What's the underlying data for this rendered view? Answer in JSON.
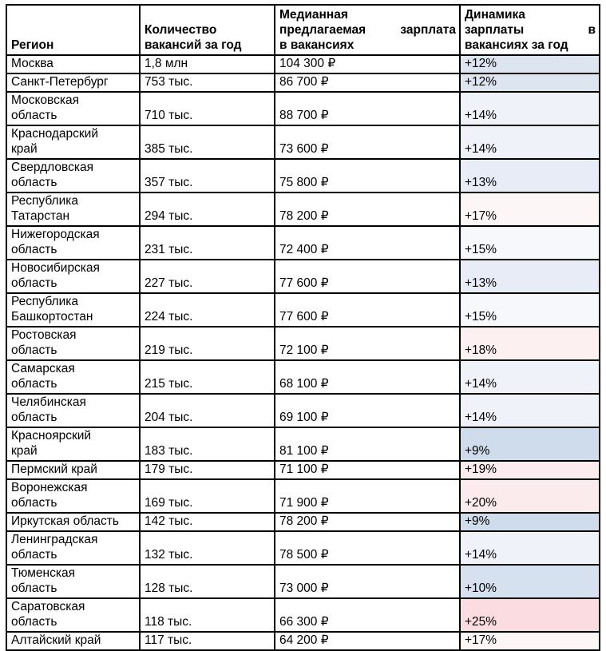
{
  "table": {
    "border_color": "#000000",
    "columns": [
      {
        "id": "region",
        "lines": [
          {
            "text": "Регион",
            "justify": false
          }
        ]
      },
      {
        "id": "vacancies",
        "lines": [
          {
            "text": "Количество",
            "justify": false
          },
          {
            "text": "вакансий за год",
            "justify": false
          }
        ]
      },
      {
        "id": "salary",
        "lines": [
          {
            "text": "Медианная",
            "justify": false
          },
          {
            "text": "предлагаемая зарплата",
            "justify": true
          },
          {
            "text": "в вакансиях",
            "justify": false
          }
        ]
      },
      {
        "id": "dynamics",
        "lines": [
          {
            "text": "Динамика",
            "justify": false
          },
          {
            "text": "зарплаты в",
            "justify": true
          },
          {
            "text": "вакансиях за год",
            "justify": false
          }
        ]
      }
    ],
    "heat_colors": {
      "+9%": "#cfdcec",
      "+10%": "#d6e1f0",
      "+12%": "#dde5f1",
      "+13%": "#e7ecf6",
      "+14%": "#eff2f9",
      "+15%": "#f7f8fc",
      "+17%": "#fcf6f7",
      "+18%": "#fdf0f1",
      "+19%": "#fceced",
      "+20%": "#fcebed",
      "+25%": "#fbdce0"
    },
    "rows": [
      {
        "region": "Москва",
        "vacancies": "1,8 млн",
        "salary": "104 300 ₽",
        "dynamics": "+12%",
        "dynamics_bg": "#dde5f1"
      },
      {
        "region": "Санкт-Петербург",
        "vacancies": "753 тыс.",
        "salary": "86 700 ₽",
        "dynamics": "+12%",
        "dynamics_bg": "#dde5f1"
      },
      {
        "region": "Московская\nобласть",
        "vacancies": "710 тыс.",
        "salary": "88 700 ₽",
        "dynamics": "+14%",
        "dynamics_bg": "#eff2f9"
      },
      {
        "region": "Краснодарский\nкрай",
        "vacancies": "385 тыс.",
        "salary": "73 600 ₽",
        "dynamics": "+14%",
        "dynamics_bg": "#eff2f9"
      },
      {
        "region": "Свердловская\nобласть",
        "vacancies": "357 тыс.",
        "salary": "75 800 ₽",
        "dynamics": "+13%",
        "dynamics_bg": "#e7ecf6"
      },
      {
        "region": "Республика\nТатарстан",
        "vacancies": "294 тыс.",
        "salary": "78 200 ₽",
        "dynamics": "+17%",
        "dynamics_bg": "#fcf6f7"
      },
      {
        "region": "Нижегородская\nобласть",
        "vacancies": "231 тыс.",
        "salary": "72 400 ₽",
        "dynamics": "+15%",
        "dynamics_bg": "#f7f8fc"
      },
      {
        "region": "Новосибирская\nобласть",
        "vacancies": "227 тыс.",
        "salary": "77 600 ₽",
        "dynamics": "+13%",
        "dynamics_bg": "#e7ecf6"
      },
      {
        "region": "Республика\nБашкортостан",
        "vacancies": "224 тыс.",
        "salary": "77 600 ₽",
        "dynamics": "+15%",
        "dynamics_bg": "#f7f8fc"
      },
      {
        "region": "Ростовская\nобласть",
        "vacancies": "219 тыс.",
        "salary": "72 100 ₽",
        "dynamics": "+18%",
        "dynamics_bg": "#fdf0f1"
      },
      {
        "region": "Самарская\nобласть",
        "vacancies": "215 тыс.",
        "salary": "68 100 ₽",
        "dynamics": "+14%",
        "dynamics_bg": "#eff2f9"
      },
      {
        "region": "Челябинская\nобласть",
        "vacancies": "204 тыс.",
        "salary": "69 100 ₽",
        "dynamics": "+14%",
        "dynamics_bg": "#eff2f9"
      },
      {
        "region": "Красноярский\nкрай",
        "vacancies": "183 тыс.",
        "salary": "81 100 ₽",
        "dynamics": "+9%",
        "dynamics_bg": "#cfdcec"
      },
      {
        "region": "Пермский край",
        "vacancies": "179 тыс.",
        "salary": "71 100 ₽",
        "dynamics": "+19%",
        "dynamics_bg": "#fceced"
      },
      {
        "region": "Воронежская\nобласть",
        "vacancies": "169 тыс.",
        "salary": "71 900 ₽",
        "dynamics": "+20%",
        "dynamics_bg": "#fcebed"
      },
      {
        "region": "Иркутская область",
        "vacancies": "142 тыс.",
        "salary": "78 200 ₽",
        "dynamics": "+9%",
        "dynamics_bg": "#cfdcec"
      },
      {
        "region": "Ленинградская\nобласть",
        "vacancies": "132 тыс.",
        "salary": "78 500 ₽",
        "dynamics": "+14%",
        "dynamics_bg": "#eff2f9"
      },
      {
        "region": "Тюменская\nобласть",
        "vacancies": "128 тыс.",
        "salary": "73 000 ₽",
        "dynamics": "+10%",
        "dynamics_bg": "#d6e1f0"
      },
      {
        "region": "Саратовская\nобласть",
        "vacancies": "118 тыс.",
        "salary": "66 300 ₽",
        "dynamics": "+25%",
        "dynamics_bg": "#fbdce0"
      },
      {
        "region": "Алтайский край",
        "vacancies": "117 тыс.",
        "salary": "64 200 ₽",
        "dynamics": "+17%",
        "dynamics_bg": "#fcf6f7"
      }
    ]
  }
}
